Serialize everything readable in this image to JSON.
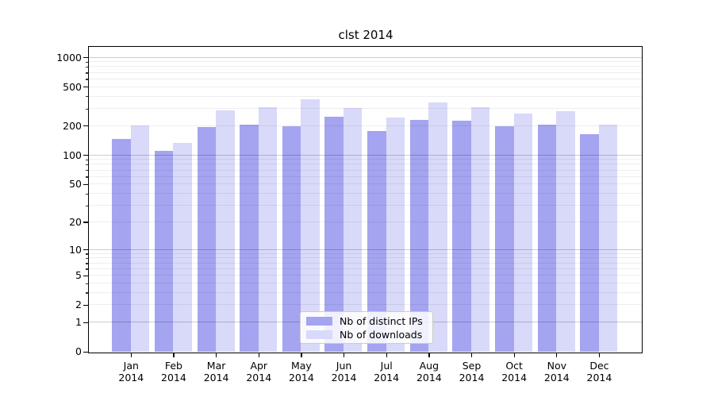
{
  "title": "clst 2014",
  "colors": {
    "bar_ips": "#a4a4f0",
    "bar_downloads": "#d9d9f9",
    "spine": "#000000",
    "grid_minor": "rgba(0,0,0,0.065)",
    "grid_major": "rgba(0,0,0,0.20)"
  },
  "y_axis": {
    "tick_values": [
      0,
      1,
      2,
      5,
      10,
      20,
      50,
      100,
      200,
      500,
      1000
    ],
    "tick_labels": [
      "0",
      "1",
      "2",
      "5",
      "10",
      "20",
      "50",
      "100",
      "200",
      "500",
      "1000"
    ],
    "minor_tick_values": [
      3,
      4,
      6,
      7,
      8,
      9,
      30,
      40,
      60,
      70,
      80,
      90,
      300,
      400,
      600,
      700,
      800,
      900
    ]
  },
  "x_axis": {
    "months": [
      "Jan",
      "Feb",
      "Mar",
      "Apr",
      "May",
      "Jun",
      "Jul",
      "Aug",
      "Sep",
      "Oct",
      "Nov",
      "Dec"
    ],
    "year": "2014"
  },
  "chart_data": {
    "type": "bar",
    "title": "clst 2014",
    "categories": [
      "Jan 2014",
      "Feb 2014",
      "Mar 2014",
      "Apr 2014",
      "May 2014",
      "Jun 2014",
      "Jul 2014",
      "Aug 2014",
      "Sep 2014",
      "Oct 2014",
      "Nov 2014",
      "Dec 2014"
    ],
    "series": [
      {
        "name": "Nb of distinct IPs",
        "color": "#a4a4f0",
        "values": [
          145,
          110,
          193,
          205,
          197,
          245,
          177,
          230,
          225,
          198,
          205,
          162
        ]
      },
      {
        "name": "Nb of downloads",
        "color": "#d9d9f9",
        "values": [
          200,
          132,
          285,
          310,
          372,
          305,
          242,
          345,
          310,
          265,
          280,
          205
        ]
      }
    ],
    "xlabel": "",
    "ylabel": "",
    "yscale": "symlog-like (log1p)",
    "ylim": [
      0,
      1000
    ],
    "y_ticks": [
      0,
      1,
      2,
      5,
      10,
      20,
      50,
      100,
      200,
      500,
      1000
    ],
    "grid": "horizontal, minor light / major darker",
    "legend_position": "bottom-center inside plot"
  }
}
